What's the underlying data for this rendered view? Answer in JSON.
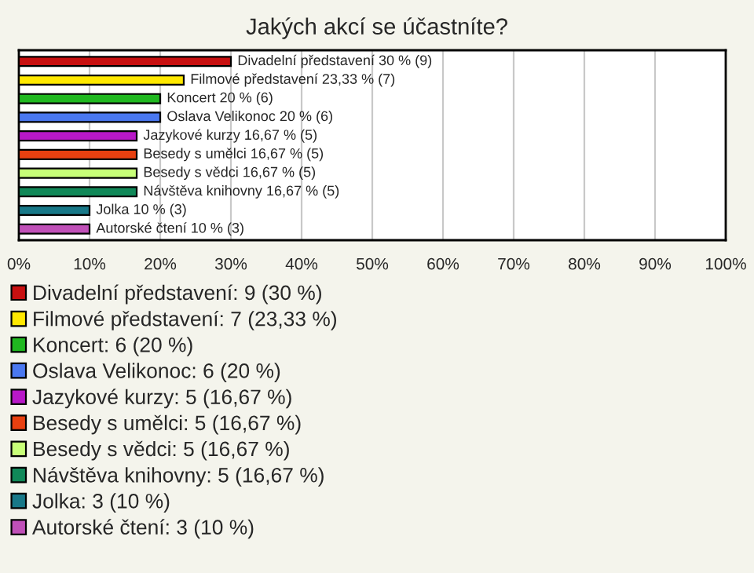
{
  "chart_data": {
    "type": "bar",
    "orientation": "horizontal",
    "title": "Jakých akcí se účastníte?",
    "categories": [
      null,
      null,
      null,
      null,
      null,
      null,
      null,
      null,
      null,
      null
    ],
    "series": [
      {
        "name": "Divadelní představení: 9 (30 %)",
        "color": "#c81010",
        "values": [
          30,
          null,
          null,
          null,
          null,
          null,
          null,
          null,
          null,
          null
        ],
        "value_labels": [
          "Divadelní představení 30 % (9)",
          null,
          null,
          null,
          null,
          null,
          null,
          null,
          null,
          null
        ]
      },
      {
        "name": "Filmové představení: 7 (23,33 %)",
        "color": "#ffe800",
        "values": [
          null,
          23.33,
          null,
          null,
          null,
          null,
          null,
          null,
          null,
          null
        ],
        "value_labels": [
          null,
          "Filmové představení 23,33 % (7)",
          null,
          null,
          null,
          null,
          null,
          null,
          null,
          null
        ]
      },
      {
        "name": "Koncert: 6 (20 %)",
        "color": "#20b820",
        "values": [
          null,
          null,
          20,
          null,
          null,
          null,
          null,
          null,
          null,
          null
        ],
        "value_labels": [
          null,
          null,
          "Koncert 20 % (6)",
          null,
          null,
          null,
          null,
          null,
          null,
          null
        ]
      },
      {
        "name": "Oslava Velikonoc: 6 (20 %)",
        "color": "#4a78f0",
        "values": [
          null,
          null,
          null,
          20,
          null,
          null,
          null,
          null,
          null,
          null
        ],
        "value_labels": [
          null,
          null,
          null,
          "Oslava Velikonoc 20 % (6)",
          null,
          null,
          null,
          null,
          null,
          null
        ]
      },
      {
        "name": "Jazykové kurzy: 5 (16,67 %)",
        "color": "#b818c8",
        "values": [
          null,
          null,
          null,
          null,
          16.67,
          null,
          null,
          null,
          null,
          null
        ],
        "value_labels": [
          null,
          null,
          null,
          null,
          "Jazykové kurzy 16,67 % (5)",
          null,
          null,
          null,
          null,
          null
        ]
      },
      {
        "name": "Besedy s umělci: 5 (16,67 %)",
        "color": "#e84010",
        "values": [
          null,
          null,
          null,
          null,
          null,
          16.67,
          null,
          null,
          null,
          null
        ],
        "value_labels": [
          null,
          null,
          null,
          null,
          null,
          "Besedy s umělci 16,67 % (5)",
          null,
          null,
          null,
          null
        ]
      },
      {
        "name": "Besedy s vědci: 5 (16,67 %)",
        "color": "#c8ff78",
        "values": [
          null,
          null,
          null,
          null,
          null,
          null,
          16.67,
          null,
          null,
          null
        ],
        "value_labels": [
          null,
          null,
          null,
          null,
          null,
          null,
          "Besedy s vědci 16,67 % (5)",
          null,
          null,
          null
        ]
      },
      {
        "name": "Návštěva knihovny: 5 (16,67 %)",
        "color": "#108858",
        "values": [
          null,
          null,
          null,
          null,
          null,
          null,
          null,
          16.67,
          null,
          null
        ],
        "value_labels": [
          null,
          null,
          null,
          null,
          null,
          null,
          null,
          "Návštěva knihovny 16,67 % (5)",
          null,
          null
        ]
      },
      {
        "name": "Jolka: 3 (10 %)",
        "color": "#187888",
        "values": [
          null,
          null,
          null,
          null,
          null,
          null,
          null,
          null,
          10,
          null
        ],
        "value_labels": [
          null,
          null,
          null,
          null,
          null,
          null,
          null,
          null,
          "Jolka 10 % (3)",
          null
        ]
      },
      {
        "name": "Autorské čtení: 3 (10 %)",
        "color": "#c050b8",
        "values": [
          null,
          null,
          null,
          null,
          null,
          null,
          null,
          null,
          null,
          10
        ],
        "value_labels": [
          null,
          null,
          null,
          null,
          null,
          null,
          null,
          null,
          null,
          "Autorské čtení 10 % (3)"
        ]
      }
    ],
    "xlim": [
      0,
      100
    ],
    "xticks": [
      {
        "value": 0,
        "label": "0%"
      },
      {
        "value": 10,
        "label": "10%"
      },
      {
        "value": 20,
        "label": "20%"
      },
      {
        "value": 30,
        "label": "30%"
      },
      {
        "value": 40,
        "label": "40%"
      },
      {
        "value": 50,
        "label": "50%"
      },
      {
        "value": 60,
        "label": "60%"
      },
      {
        "value": 70,
        "label": "70%"
      },
      {
        "value": 80,
        "label": "80%"
      },
      {
        "value": 90,
        "label": "90%"
      },
      {
        "value": 100,
        "label": "100%"
      }
    ],
    "tick_labels": "x",
    "grid": "x",
    "legend": "bottom"
  }
}
